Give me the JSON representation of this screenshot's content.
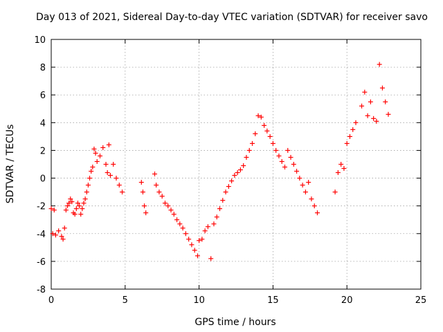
{
  "chart_data": {
    "type": "scatter",
    "title": "Day 013 of 2021, Sidereal Day-to-day VTEC variation (SDTVAR) for receiver savo",
    "xlabel": "GPS time / hours",
    "ylabel": "SDTVAR / TECUs",
    "xlim": [
      0,
      25
    ],
    "ylim": [
      -8,
      10
    ],
    "xticks": [
      0,
      5,
      10,
      15,
      20,
      25
    ],
    "yticks": [
      -8,
      -6,
      -4,
      -2,
      0,
      2,
      4,
      6,
      8,
      10
    ],
    "grid": true,
    "marker": "+",
    "color": "#ff0000",
    "series": [
      {
        "name": "SDTVAR",
        "x": [
          0.0,
          0.1,
          0.2,
          0.3,
          0.5,
          0.7,
          0.8,
          0.9,
          1.0,
          1.1,
          1.2,
          1.3,
          1.4,
          1.5,
          1.6,
          1.7,
          1.8,
          1.9,
          2.0,
          2.1,
          2.2,
          2.3,
          2.4,
          2.5,
          2.6,
          2.7,
          2.8,
          2.9,
          3.0,
          3.1,
          3.3,
          3.5,
          3.7,
          3.8,
          3.9,
          4.0,
          4.2,
          4.4,
          4.6,
          4.8,
          6.1,
          6.2,
          6.3,
          6.4,
          7.0,
          7.1,
          7.3,
          7.5,
          7.7,
          7.9,
          8.1,
          8.3,
          8.5,
          8.7,
          8.9,
          9.1,
          9.3,
          9.5,
          9.7,
          9.9,
          10.0,
          10.2,
          10.4,
          10.6,
          10.8,
          11.0,
          11.2,
          11.4,
          11.6,
          11.8,
          12.0,
          12.2,
          12.4,
          12.6,
          12.8,
          13.0,
          13.2,
          13.4,
          13.6,
          13.8,
          14.0,
          14.2,
          14.4,
          14.6,
          14.8,
          15.0,
          15.2,
          15.4,
          15.6,
          15.8,
          16.0,
          16.2,
          16.4,
          16.6,
          16.8,
          17.0,
          17.2,
          17.4,
          17.6,
          17.8,
          18.0,
          19.2,
          19.4,
          19.6,
          19.8,
          20.0,
          20.2,
          20.4,
          20.6,
          21.0,
          21.2,
          21.4,
          21.6,
          21.8,
          22.0,
          22.2,
          22.4,
          22.6,
          22.8
        ],
        "y": [
          -2.2,
          -4.0,
          -2.3,
          -4.1,
          -3.8,
          -4.2,
          -4.4,
          -3.6,
          -2.3,
          -2.0,
          -1.8,
          -1.5,
          -1.7,
          -2.5,
          -2.6,
          -2.2,
          -1.8,
          -2.0,
          -2.6,
          -2.2,
          -1.8,
          -1.5,
          -1.0,
          -0.5,
          0.0,
          0.5,
          0.8,
          2.1,
          1.8,
          1.2,
          1.6,
          2.2,
          1.0,
          0.4,
          2.4,
          0.2,
          1.0,
          0.0,
          -0.5,
          -1.0,
          -0.3,
          -1.0,
          -2.0,
          -2.5,
          0.3,
          -0.5,
          -1.0,
          -1.3,
          -1.8,
          -2.0,
          -2.3,
          -2.6,
          -3.0,
          -3.3,
          -3.6,
          -4.0,
          -4.4,
          -4.8,
          -5.2,
          -5.6,
          -4.5,
          -4.4,
          -3.8,
          -3.5,
          -5.8,
          -3.3,
          -2.8,
          -2.2,
          -1.6,
          -1.0,
          -0.6,
          -0.2,
          0.2,
          0.4,
          0.6,
          0.9,
          1.5,
          2.0,
          2.5,
          3.2,
          4.5,
          4.4,
          3.8,
          3.4,
          3.0,
          2.5,
          2.0,
          1.6,
          1.2,
          0.8,
          2.0,
          1.5,
          1.0,
          0.5,
          0.0,
          -0.5,
          -1.0,
          -0.3,
          -1.5,
          -2.0,
          -2.5,
          -1.0,
          0.4,
          1.0,
          0.7,
          2.5,
          3.0,
          3.5,
          4.0,
          5.2,
          6.2,
          4.5,
          5.5,
          4.3,
          4.1,
          8.2,
          6.5,
          5.5,
          4.6
        ]
      }
    ]
  }
}
